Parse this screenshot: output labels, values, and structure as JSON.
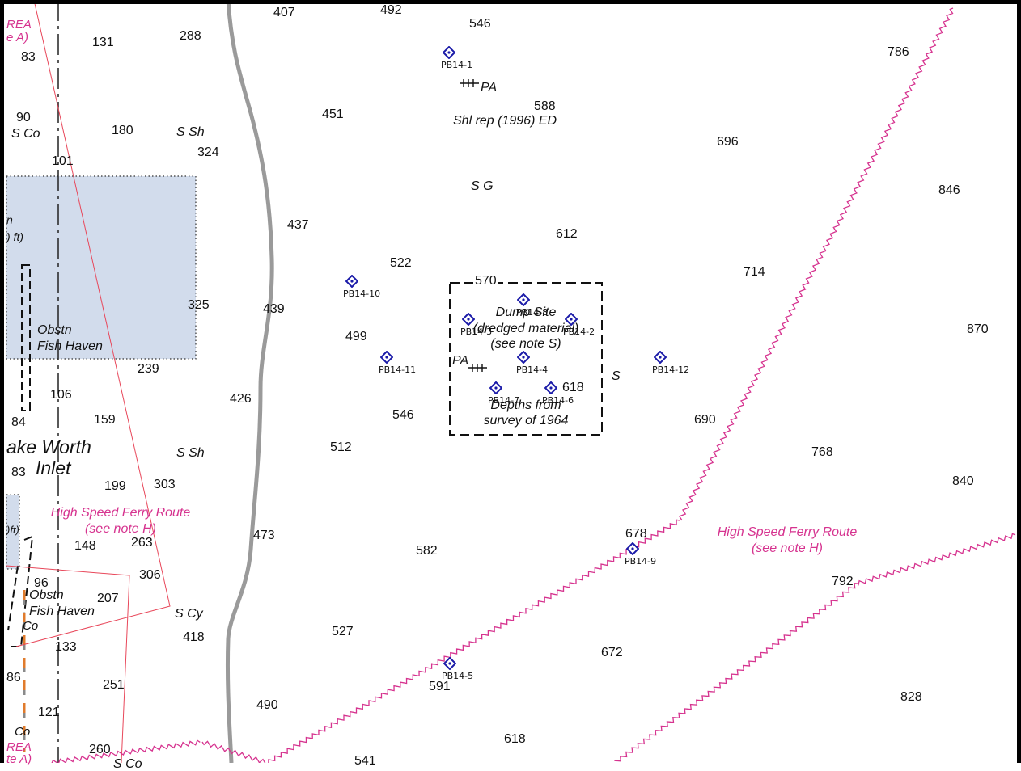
{
  "colors": {
    "shaded_area": "#d2dcec",
    "route_pink": "#d6338f",
    "thin_red": "#e8475a",
    "shore": "#9a9a9a",
    "station_blue": "#1a1aa8",
    "frame": "#000000"
  },
  "icons": {
    "station": "diamond-dot-icon",
    "pipeline": "pipeline-hatch-icon"
  },
  "area_labels": {
    "top_left": "REA",
    "top_left_2": "e A)",
    "bottom_left": "REA",
    "bottom_left_2": "te A)",
    "shaded_1": "n",
    "shaded_2": ") ft)",
    "small_shaded": ")ft)"
  },
  "depths": {
    "d407": "407",
    "d492": "492",
    "d546a": "546",
    "d131": "131",
    "d288": "288",
    "d83a": "83",
    "d786": "786",
    "d588": "588",
    "d90": "90",
    "d180": "180",
    "d451": "451",
    "d324": "324",
    "d696": "696",
    "d101": "101",
    "d846": "846",
    "d437": "437",
    "d612": "612",
    "d522": "522",
    "d714": "714",
    "d570": "570",
    "d325": "325",
    "d439": "439",
    "d870": "870",
    "d499": "499",
    "d239": "239",
    "d618a": "618",
    "d106": "106",
    "d426": "426",
    "d546b": "546",
    "d84": "84",
    "d159": "159",
    "d690": "690",
    "d512": "512",
    "d768": "768",
    "d83b": "83",
    "d199": "199",
    "d303": "303",
    "d840": "840",
    "d263": "263",
    "d148": "148",
    "d473": "473",
    "d582": "582",
    "d678": "678",
    "d306": "306",
    "d96": "96",
    "d792": "792",
    "d207": "207",
    "d527": "527",
    "d418": "418",
    "d133": "133",
    "d672": "672",
    "d86": "86",
    "d251": "251",
    "d591": "591",
    "d828": "828",
    "d121": "121",
    "d490": "490",
    "d260": "260",
    "d618b": "618",
    "d541": "541"
  },
  "bottom_natures": {
    "s_co_1": "S Co",
    "s_sh_1": "S Sh",
    "shl_rep": "Shl rep (1996) ED",
    "s_g": "S G",
    "s_sh_2": "S Sh",
    "s_single": "S",
    "s_cy": "S Cy",
    "co_1": "Co",
    "co_2": "Co",
    "s_co_2": "S Co",
    "pa_1": "PA",
    "pa_2": "PA"
  },
  "features": {
    "obstn_1": "Obstn",
    "fish_haven_1": "Fish Haven",
    "obstn_2": "Obstn",
    "fish_haven_2": "Fish Haven",
    "place_line1": "ake  Worth",
    "place_line2": "Inlet"
  },
  "notes": {
    "dump_site_1": "Dump Site",
    "dump_site_2": "(dredged material)",
    "dump_site_3": "(see note S)",
    "depths_1": "Depths from",
    "depths_2": "survey of 1964"
  },
  "routes": {
    "ferry_left_1": "High Speed Ferry Route",
    "ferry_left_2": "(see note H)",
    "ferry_right_1": "High Speed Ferry Route",
    "ferry_right_2": "(see note H)"
  },
  "stations": {
    "pb14_1": "PB14-1",
    "pb14_10": "PB14-10",
    "pb14_8": "PB14-8",
    "pb14_3": "PB14-3",
    "pb14_2": "PB14-2",
    "pb14_11": "PB14-11",
    "pb14_4": "PB14-4",
    "pb14_12": "PB14-12",
    "pb14_7": "PB14-7",
    "pb14_6": "PB14-6",
    "pb14_9": "PB14-9",
    "pb14_5": "PB14-5"
  }
}
